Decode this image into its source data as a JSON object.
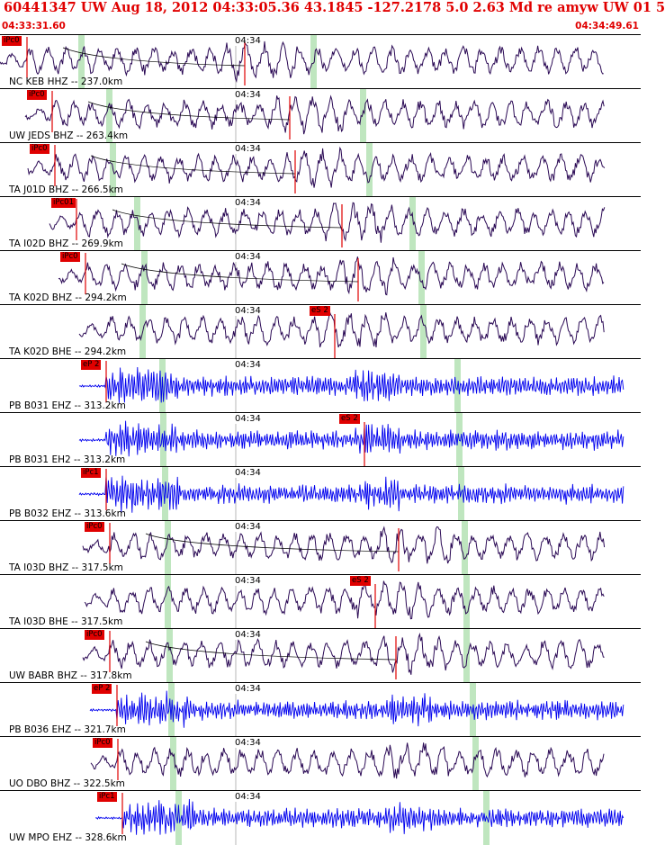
{
  "header": {
    "title": "60441347 UW Aug 18, 2012 04:33:05.36   43.1845 -127.2178  5.0 2.63 Md re amyw UW 01   5",
    "time_start": "04:33:31.60",
    "time_end": "04:34:49.61",
    "title_color": "#e00000"
  },
  "time_mark": "04:34",
  "colors": {
    "short_period": "#0000ee",
    "broadband": "#2b0a55",
    "pick": "#e00000",
    "marker": "#bfe6bf"
  },
  "traces": [
    {
      "label": "NC KEB HHZ -- 237.0km",
      "pick": "iPc0",
      "s_pick": "",
      "type": "broadband"
    },
    {
      "label": "UW JEDS BHZ -- 263.4km",
      "pick": "iPc0",
      "s_pick": "",
      "type": "broadband"
    },
    {
      "label": "TA J01D BHZ -- 266.5km",
      "pick": "iPc0",
      "s_pick": "",
      "type": "broadband"
    },
    {
      "label": "TA I02D BHZ -- 269.9km",
      "pick": "iPc01",
      "s_pick": "",
      "type": "broadband"
    },
    {
      "label": "TA K02D BHZ -- 294.2km",
      "pick": "iPc0",
      "s_pick": "",
      "type": "broadband"
    },
    {
      "label": "TA K02D BHE -- 294.2km",
      "pick": "",
      "s_pick": "eS 2",
      "type": "broadband"
    },
    {
      "label": "PB B031 EHZ -- 313.2km",
      "pick": "eP 2",
      "s_pick": "",
      "type": "short_period"
    },
    {
      "label": "PB B031 EH2 -- 313.2km",
      "pick": "",
      "s_pick": "eS 2",
      "type": "short_period"
    },
    {
      "label": "PB B032 EHZ -- 313.6km",
      "pick": "iPc1",
      "s_pick": "",
      "type": "short_period"
    },
    {
      "label": "TA I03D BHZ -- 317.5km",
      "pick": "iPc0",
      "s_pick": "",
      "type": "broadband"
    },
    {
      "label": "TA I03D BHE -- 317.5km",
      "pick": "",
      "s_pick": "eS 2",
      "type": "broadband"
    },
    {
      "label": "UW BABR BHZ -- 317.8km",
      "pick": "iPc0",
      "s_pick": "",
      "type": "broadband"
    },
    {
      "label": "PB B036 EHZ -- 321.7km",
      "pick": "eP 2",
      "s_pick": "",
      "type": "short_period"
    },
    {
      "label": "UO DBO BHZ -- 322.5km",
      "pick": "iPc0",
      "s_pick": "",
      "type": "broadband"
    },
    {
      "label": "UW MPO EHZ -- 328.6km",
      "pick": "iPc1",
      "s_pick": "",
      "type": "short_period"
    }
  ]
}
